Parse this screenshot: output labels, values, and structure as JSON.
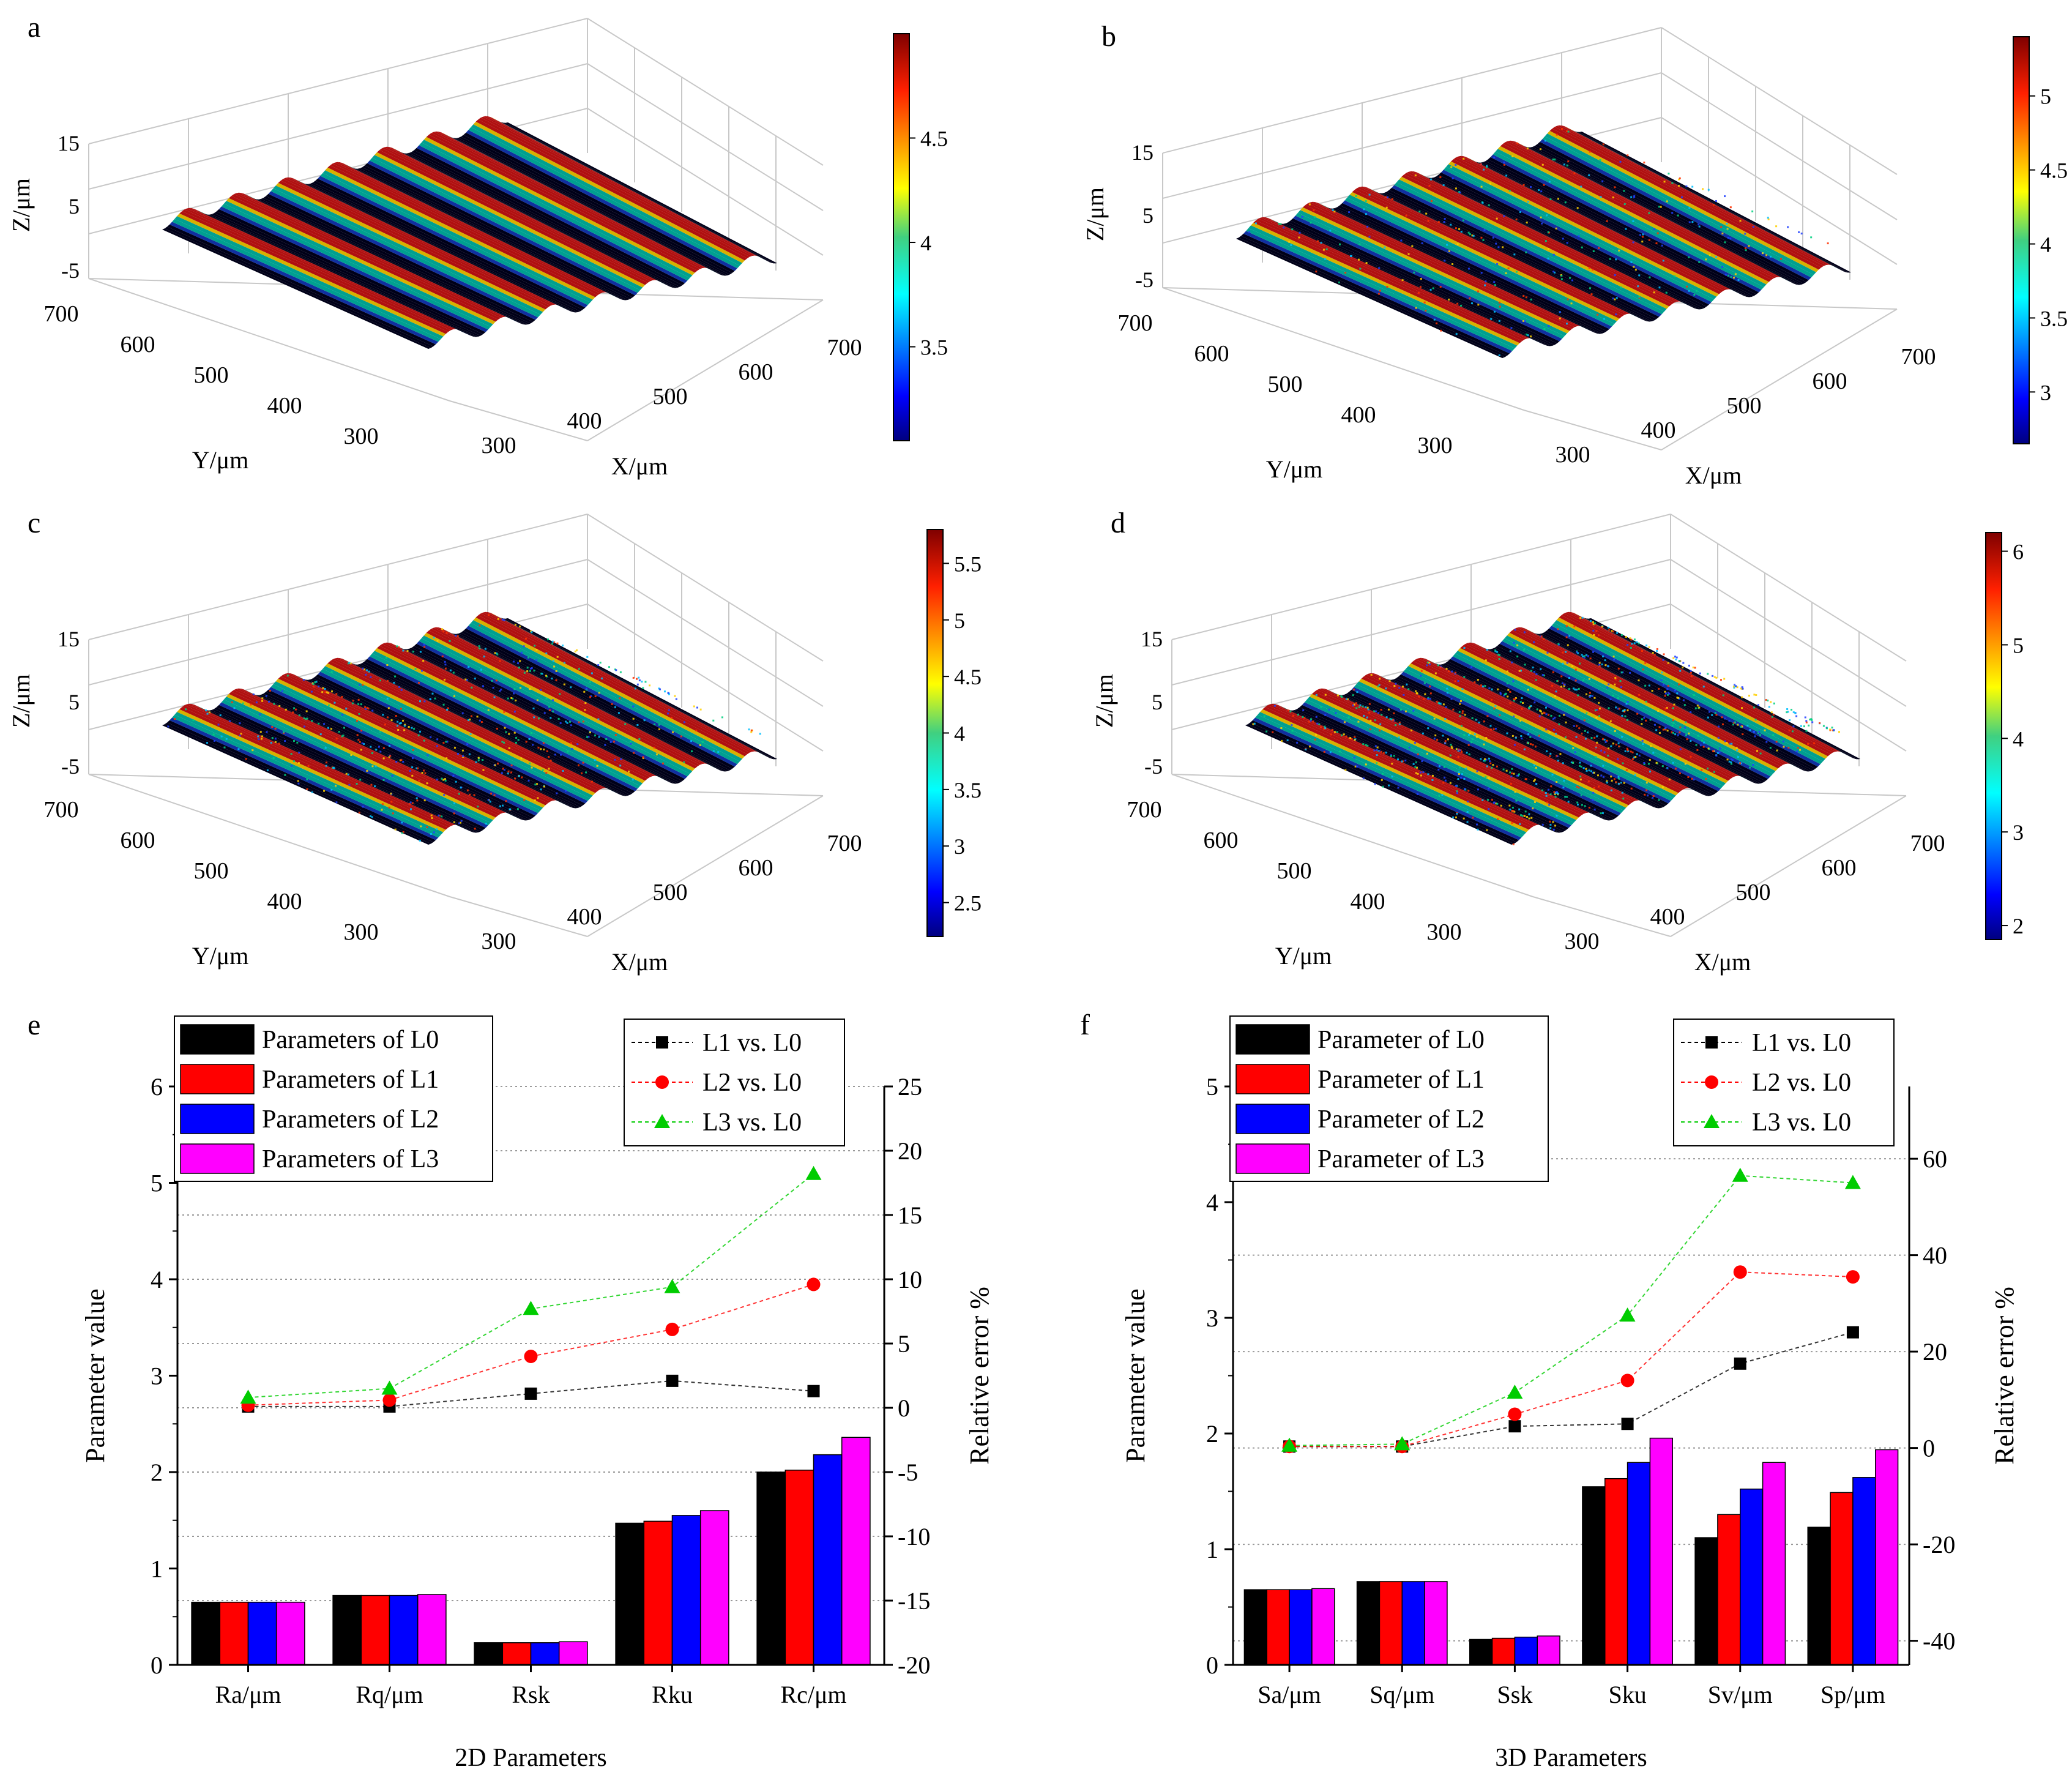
{
  "surface_panels": [
    {
      "letter": "a",
      "zlabel": "Z/μm",
      "ylabel": "Y/μm",
      "xlabel": "X/μm",
      "zticks": [
        "15",
        "5",
        "-5"
      ],
      "yticks": [
        "700",
        "600",
        "500",
        "400",
        "300"
      ],
      "xticks": [
        "300",
        "400",
        "500",
        "600",
        "700"
      ],
      "cbar_ticks": [
        "4.5",
        "4",
        "3.5"
      ],
      "cbar_range": [
        3.05,
        5.0
      ],
      "noise": 0.0
    },
    {
      "letter": "b",
      "zlabel": "Z/μm",
      "ylabel": "Y/μm",
      "xlabel": "X/μm",
      "zticks": [
        "15",
        "5",
        "-5"
      ],
      "yticks": [
        "700",
        "600",
        "500",
        "400",
        "300"
      ],
      "xticks": [
        "300",
        "400",
        "500",
        "600",
        "700"
      ],
      "cbar_ticks": [
        "5",
        "4.5",
        "4",
        "3.5",
        "3"
      ],
      "cbar_range": [
        2.65,
        5.4
      ],
      "noise": 0.25
    },
    {
      "letter": "c",
      "zlabel": "Z/μm",
      "ylabel": "Y/μm",
      "xlabel": "X/μm",
      "zticks": [
        "15",
        "5",
        "-5"
      ],
      "yticks": [
        "700",
        "600",
        "500",
        "400",
        "300"
      ],
      "xticks": [
        "300",
        "400",
        "500",
        "600",
        "700"
      ],
      "cbar_ticks": [
        "5.5",
        "5",
        "4.5",
        "4",
        "3.5",
        "3",
        "2.5"
      ],
      "cbar_range": [
        2.2,
        5.8
      ],
      "noise": 0.45
    },
    {
      "letter": "d",
      "zlabel": "Z/μm",
      "ylabel": "Y/μm",
      "xlabel": "X/μm",
      "zticks": [
        "15",
        "5",
        "-5"
      ],
      "yticks": [
        "700",
        "600",
        "500",
        "400",
        "300"
      ],
      "xticks": [
        "300",
        "400",
        "500",
        "600",
        "700"
      ],
      "cbar_ticks": [
        "6",
        "5",
        "4",
        "3",
        "2"
      ],
      "cbar_range": [
        1.85,
        6.2
      ],
      "noise": 0.75
    }
  ],
  "chart_data": [
    {
      "panel": "e",
      "type": "bar",
      "xlabel": "2D Parameters",
      "ylabel": "Parameter value",
      "y2label": "Relative error %",
      "categories": [
        "Ra/μm",
        "Rq/μm",
        "Rsk",
        "Rku",
        "Rc/μm"
      ],
      "ylim": [
        0,
        6
      ],
      "yticks": [
        0,
        1,
        2,
        3,
        4,
        5,
        6
      ],
      "y2lim": [
        -20,
        25
      ],
      "y2ticks": [
        -20,
        -15,
        -10,
        -5,
        0,
        5,
        10,
        15,
        20,
        25
      ],
      "series": [
        {
          "name": "Parameters of L0",
          "color": "#000000",
          "values": [
            0.65,
            0.72,
            0.23,
            1.47,
            2.0
          ]
        },
        {
          "name": "Parameters of L1",
          "color": "#ff0000",
          "values": [
            0.65,
            0.72,
            0.23,
            1.49,
            2.02
          ]
        },
        {
          "name": "Parameters of L2",
          "color": "#0000ff",
          "values": [
            0.65,
            0.72,
            0.23,
            1.55,
            2.18
          ]
        },
        {
          "name": "Parameters of L3",
          "color": "#ff00ff",
          "values": [
            0.65,
            0.73,
            0.24,
            1.6,
            2.36
          ]
        }
      ],
      "error_series": [
        {
          "name": "L1 vs. L0",
          "color": "#000000",
          "marker": "square",
          "values": [
            0.1,
            0.1,
            1.1,
            2.1,
            1.3
          ]
        },
        {
          "name": "L2 vs. L0",
          "color": "#ff0000",
          "marker": "circle",
          "values": [
            0.2,
            0.6,
            4.0,
            6.1,
            9.6
          ]
        },
        {
          "name": "L3 vs. L0",
          "color": "#00cc00",
          "marker": "triangle",
          "values": [
            0.8,
            1.5,
            7.7,
            9.4,
            18.2
          ]
        }
      ]
    },
    {
      "panel": "f",
      "type": "bar",
      "xlabel": "3D Parameters",
      "ylabel": "Parameter value",
      "y2label": "Relative error %",
      "categories": [
        "Sa/μm",
        "Sq/μm",
        "Ssk",
        "Sku",
        "Sv/μm",
        "Sp/μm"
      ],
      "ylim": [
        0,
        5
      ],
      "yticks": [
        0,
        1,
        2,
        3,
        4,
        5
      ],
      "y2lim": [
        -45,
        75
      ],
      "y2ticks": [
        -40,
        -20,
        0,
        20,
        40,
        60
      ],
      "series": [
        {
          "name": "Parameter of L0",
          "color": "#000000",
          "values": [
            0.65,
            0.72,
            0.22,
            1.54,
            1.1,
            1.19
          ]
        },
        {
          "name": "Parameter of L1",
          "color": "#ff0000",
          "values": [
            0.65,
            0.72,
            0.23,
            1.61,
            1.3,
            1.49
          ]
        },
        {
          "name": "Parameter of L2",
          "color": "#0000ff",
          "values": [
            0.65,
            0.72,
            0.24,
            1.75,
            1.52,
            1.62
          ]
        },
        {
          "name": "Parameter of L3",
          "color": "#ff00ff",
          "values": [
            0.66,
            0.72,
            0.25,
            1.96,
            1.75,
            1.86
          ]
        }
      ],
      "error_series": [
        {
          "name": "L1 vs. L0",
          "color": "#000000",
          "marker": "square",
          "values": [
            0.3,
            0.3,
            4.5,
            5.0,
            17.5,
            24.0
          ]
        },
        {
          "name": "L2 vs. L0",
          "color": "#ff0000",
          "marker": "circle",
          "values": [
            0.3,
            0.3,
            7.0,
            14.0,
            36.5,
            35.5
          ]
        },
        {
          "name": "L3 vs. L0",
          "color": "#00cc00",
          "marker": "triangle",
          "values": [
            0.5,
            0.8,
            11.5,
            27.5,
            56.5,
            55.0
          ]
        }
      ]
    }
  ]
}
